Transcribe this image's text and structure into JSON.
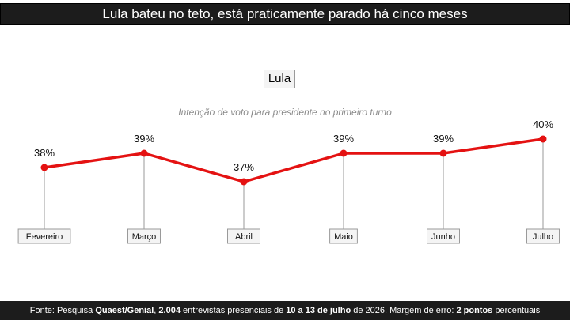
{
  "header": {
    "title": "Lula bateu no teto, está praticamente parado há cinco meses"
  },
  "chip": {
    "label": "Lula"
  },
  "subtitle": "Intenção de voto para presidente no primeiro turno",
  "colors": {
    "line": "#e41212",
    "bar": "#1c1c1c"
  },
  "chart_data": {
    "type": "line",
    "title": "Lula",
    "subtitle": "Intenção de voto para presidente no primeiro turno",
    "categories": [
      "Fevereiro",
      "Março",
      "Abril",
      "Maio",
      "Junho",
      "Julho"
    ],
    "series": [
      {
        "name": "Lula",
        "values": [
          38,
          39,
          37,
          39,
          39,
          40
        ]
      }
    ],
    "data_labels": [
      "38%",
      "39%",
      "37%",
      "39%",
      "39%",
      "40%"
    ],
    "ylim": [
      36,
      41
    ],
    "grid": false,
    "legend": "none"
  },
  "footer": {
    "prefix": "Fonte: Pesquisa ",
    "source": "Quaest/Genial",
    "sep1": ", ",
    "interviews": "2.004",
    "middle": " entrevistas presenciais de ",
    "dates": "10 a 13 de julho",
    "year": " de 2026. Margem de erro: ",
    "margin": "2 pontos",
    "suffix": " percentuais"
  }
}
